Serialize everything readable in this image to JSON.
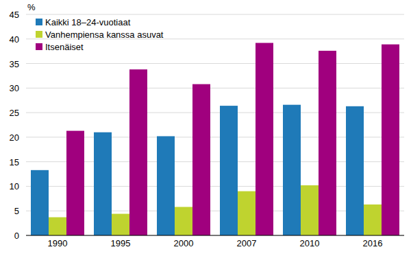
{
  "chart_data": {
    "type": "bar",
    "y_label": "%",
    "categories": [
      "1990",
      "1995",
      "2000",
      "2007",
      "2010",
      "2016"
    ],
    "series": [
      {
        "name": "Kaikki 18–24-vuotiaat",
        "color": "#1f7ab8",
        "values": [
          13.3,
          21.0,
          20.2,
          26.4,
          26.6,
          26.3
        ]
      },
      {
        "name": "Vanhempiensa kanssa asuvat",
        "color": "#bfd32f",
        "values": [
          3.7,
          4.4,
          5.8,
          9.0,
          10.2,
          6.3
        ]
      },
      {
        "name": "Itsenäiset",
        "color": "#a0007e",
        "values": [
          21.3,
          33.8,
          30.8,
          39.2,
          37.6,
          38.9
        ]
      }
    ],
    "ylim": [
      0,
      45
    ],
    "yticks": [
      0,
      5,
      10,
      15,
      20,
      25,
      30,
      35,
      40,
      45
    ],
    "grid": true,
    "legend": "top-left"
  }
}
